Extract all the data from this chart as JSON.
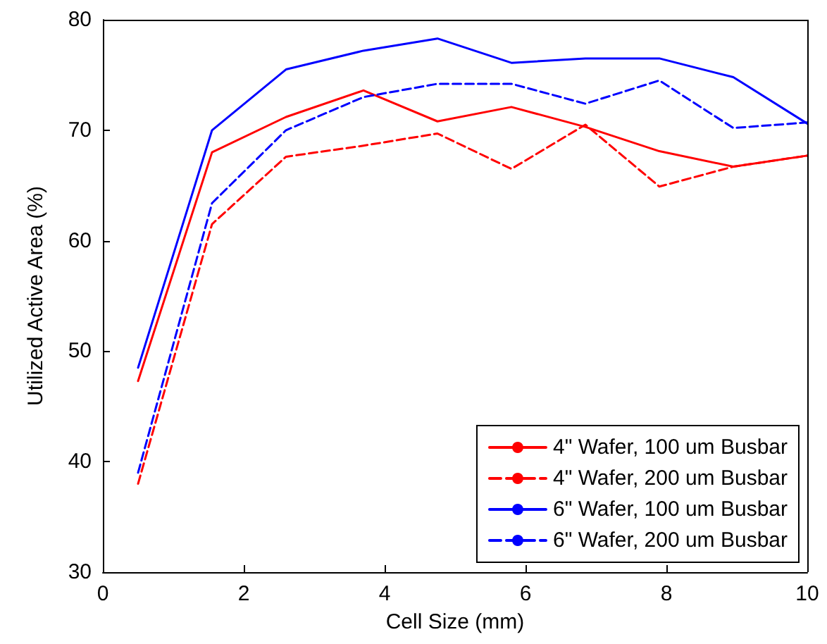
{
  "chart_data": {
    "type": "line",
    "xlabel": "Cell Size (mm)",
    "ylabel": "Utilized Active Area (%)",
    "x": [
      0.5,
      1.55,
      2.6,
      3.7,
      4.75,
      5.8,
      6.85,
      7.9,
      8.95,
      10
    ],
    "xlim": [
      0,
      10
    ],
    "xticks": [
      0,
      2,
      4,
      6,
      8,
      10
    ],
    "ylim": [
      30,
      80
    ],
    "yticks": [
      30,
      40,
      50,
      60,
      70,
      80
    ],
    "grid": false,
    "legend": "bottom right",
    "marker": "none",
    "series": [
      {
        "name": "4\" Wafer, 100 um Busbar",
        "color": "#ff0000",
        "line_style": "solid",
        "values": [
          47.3,
          68,
          71.2,
          73.6,
          70.8,
          72.1,
          70.3,
          68.1,
          66.7,
          67.7
        ]
      },
      {
        "name": "4\" Wafer, 200 um Busbar",
        "color": "#ff0000",
        "line_style": "dashed",
        "values": [
          38,
          61.5,
          67.6,
          68.6,
          69.7,
          66.5,
          70.5,
          64.9,
          66.7,
          67.7
        ]
      },
      {
        "name": "6\" Wafer, 100 um Busbar",
        "color": "#0000ff",
        "line_style": "solid",
        "values": [
          48.5,
          70,
          75.5,
          77.2,
          78.3,
          76.1,
          76.5,
          76.5,
          74.8,
          70.6
        ]
      },
      {
        "name": "6\" Wafer, 200 um Busbar",
        "color": "#0000ff",
        "line_style": "dashed",
        "values": [
          39,
          63.4,
          70,
          73,
          74.2,
          74.2,
          72.4,
          74.5,
          70.2,
          70.7
        ]
      }
    ]
  }
}
